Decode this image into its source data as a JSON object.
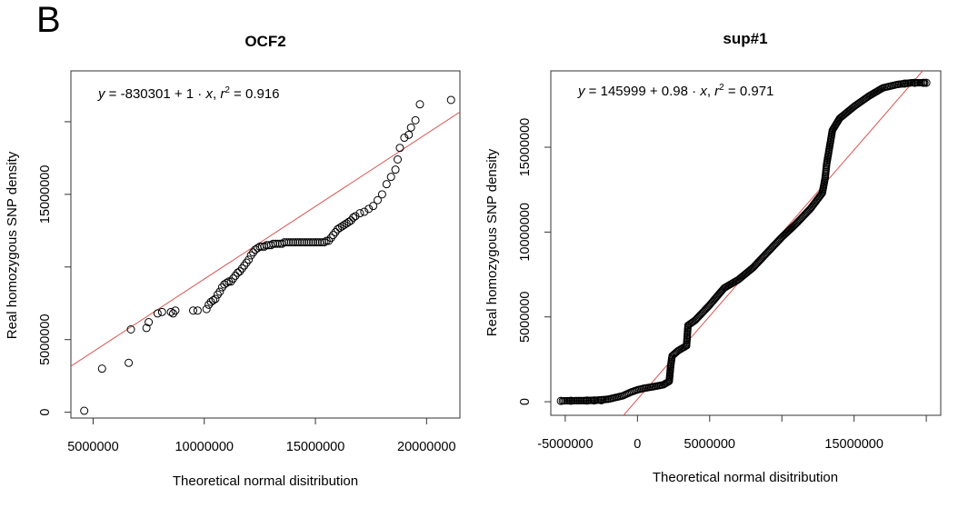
{
  "figure": {
    "panel_letter": "B"
  },
  "chart_data": [
    {
      "type": "scatter",
      "title": "OCF2",
      "xlabel": "Theoretical normal disitribution",
      "ylabel": "Real homozygous SNP density",
      "equation": {
        "intercept": "-830301",
        "slope": "1",
        "r2": "0.916"
      },
      "xlim": [
        4000000,
        21500000
      ],
      "ylim": [
        -400000,
        23500000
      ],
      "xticks": [
        5000000,
        10000000,
        15000000,
        20000000
      ],
      "xtick_labels": [
        "5000000",
        "10000000",
        "15000000",
        "20000000"
      ],
      "yticks": [
        0,
        5000000,
        10000000,
        15000000,
        20000000
      ],
      "ytick_labels": [
        "0",
        "5000000",
        "",
        "15000000",
        ""
      ],
      "fit_line": {
        "intercept": -830301,
        "slope": 1.0
      },
      "points": [
        [
          4600000,
          100000
        ],
        [
          5400000,
          3000000
        ],
        [
          6600000,
          3400000
        ],
        [
          6700000,
          5700000
        ],
        [
          7400000,
          5800000
        ],
        [
          7500000,
          6200000
        ],
        [
          7900000,
          6800000
        ],
        [
          8100000,
          6900000
        ],
        [
          8500000,
          6900000
        ],
        [
          8600000,
          6800000
        ],
        [
          8700000,
          7000000
        ],
        [
          9500000,
          7000000
        ],
        [
          9700000,
          7000000
        ],
        [
          10100000,
          7100000
        ],
        [
          10200000,
          7400000
        ],
        [
          10300000,
          7600000
        ],
        [
          10400000,
          7700000
        ],
        [
          10500000,
          7800000
        ],
        [
          10600000,
          8100000
        ],
        [
          10700000,
          8300000
        ],
        [
          10800000,
          8600000
        ],
        [
          10900000,
          8800000
        ],
        [
          11000000,
          8900000
        ],
        [
          11100000,
          9000000
        ],
        [
          11200000,
          9000000
        ],
        [
          11300000,
          9200000
        ],
        [
          11400000,
          9400000
        ],
        [
          11500000,
          9600000
        ],
        [
          11600000,
          9700000
        ],
        [
          11700000,
          9900000
        ],
        [
          11800000,
          10100000
        ],
        [
          11900000,
          10300000
        ],
        [
          12000000,
          10500000
        ],
        [
          12100000,
          10800000
        ],
        [
          12200000,
          11000000
        ],
        [
          12300000,
          11200000
        ],
        [
          12400000,
          11300000
        ],
        [
          12500000,
          11400000
        ],
        [
          12600000,
          11400000
        ],
        [
          12700000,
          11400000
        ],
        [
          12800000,
          11500000
        ],
        [
          12900000,
          11500000
        ],
        [
          13000000,
          11500000
        ],
        [
          13100000,
          11600000
        ],
        [
          13200000,
          11600000
        ],
        [
          13300000,
          11600000
        ],
        [
          13400000,
          11600000
        ],
        [
          13500000,
          11600000
        ],
        [
          13600000,
          11700000
        ],
        [
          13700000,
          11700000
        ],
        [
          13800000,
          11700000
        ],
        [
          13900000,
          11700000
        ],
        [
          14000000,
          11700000
        ],
        [
          14100000,
          11700000
        ],
        [
          14200000,
          11700000
        ],
        [
          14300000,
          11700000
        ],
        [
          14400000,
          11700000
        ],
        [
          14500000,
          11700000
        ],
        [
          14600000,
          11700000
        ],
        [
          14700000,
          11700000
        ],
        [
          14800000,
          11700000
        ],
        [
          14900000,
          11700000
        ],
        [
          15000000,
          11700000
        ],
        [
          15100000,
          11700000
        ],
        [
          15200000,
          11700000
        ],
        [
          15300000,
          11700000
        ],
        [
          15400000,
          11700000
        ],
        [
          15500000,
          11800000
        ],
        [
          15600000,
          11800000
        ],
        [
          15700000,
          12000000
        ],
        [
          15800000,
          12200000
        ],
        [
          15900000,
          12400000
        ],
        [
          16000000,
          12600000
        ],
        [
          16100000,
          12700000
        ],
        [
          16200000,
          12800000
        ],
        [
          16300000,
          12900000
        ],
        [
          16400000,
          13000000
        ],
        [
          16500000,
          13100000
        ],
        [
          16600000,
          13200000
        ],
        [
          16700000,
          13400000
        ],
        [
          16800000,
          13500000
        ],
        [
          17000000,
          13700000
        ],
        [
          17200000,
          13800000
        ],
        [
          17400000,
          14000000
        ],
        [
          17600000,
          14200000
        ],
        [
          17800000,
          14600000
        ],
        [
          18000000,
          15000000
        ],
        [
          18200000,
          15700000
        ],
        [
          18400000,
          16200000
        ],
        [
          18600000,
          16700000
        ],
        [
          18700000,
          17400000
        ],
        [
          18800000,
          18200000
        ],
        [
          19000000,
          18900000
        ],
        [
          19200000,
          19100000
        ],
        [
          19300000,
          19600000
        ],
        [
          19500000,
          20100000
        ],
        [
          19700000,
          21200000
        ],
        [
          21100000,
          21500000
        ]
      ]
    },
    {
      "type": "scatter",
      "title": "sup#1",
      "xlabel": "Theoretical normal disitribution",
      "ylabel": "Real homozygous SNP density",
      "equation": {
        "intercept": "145999",
        "slope": "0.98",
        "r2": "0.971"
      },
      "xlim": [
        -6000000,
        21000000
      ],
      "ylim": [
        -800000,
        19500000
      ],
      "xticks": [
        -5000000,
        0,
        5000000,
        10000000,
        15000000,
        20000000
      ],
      "xtick_labels": [
        "-5000000",
        "0",
        "5000000",
        "",
        "15000000",
        ""
      ],
      "yticks": [
        0,
        5000000,
        10000000,
        15000000
      ],
      "ytick_labels": [
        "0",
        "5000000",
        "10000000",
        "15000000"
      ],
      "fit_line": {
        "intercept": 145999,
        "slope": 0.98
      },
      "curve_points": [
        [
          -5200000,
          50000
        ],
        [
          -4500000,
          60000
        ],
        [
          -3500000,
          70000
        ],
        [
          -2800000,
          90000
        ],
        [
          -2000000,
          150000
        ],
        [
          -1500000,
          250000
        ],
        [
          -1000000,
          350000
        ],
        [
          -500000,
          550000
        ],
        [
          0,
          700000
        ],
        [
          500000,
          800000
        ],
        [
          1200000,
          900000
        ],
        [
          1800000,
          1000000
        ],
        [
          2200000,
          1200000
        ],
        [
          2300000,
          2100000
        ],
        [
          2400000,
          2700000
        ],
        [
          2800000,
          3000000
        ],
        [
          3400000,
          3300000
        ],
        [
          3500000,
          4500000
        ],
        [
          4000000,
          4800000
        ],
        [
          5000000,
          5700000
        ],
        [
          6000000,
          6700000
        ],
        [
          7000000,
          7200000
        ],
        [
          8000000,
          7900000
        ],
        [
          9000000,
          8800000
        ],
        [
          10000000,
          9700000
        ],
        [
          11000000,
          10500000
        ],
        [
          12000000,
          11400000
        ],
        [
          12800000,
          12300000
        ],
        [
          13000000,
          13200000
        ],
        [
          13100000,
          14000000
        ],
        [
          13300000,
          15000000
        ],
        [
          13500000,
          16000000
        ],
        [
          14000000,
          16700000
        ],
        [
          15000000,
          17400000
        ],
        [
          16000000,
          18000000
        ],
        [
          17000000,
          18500000
        ],
        [
          18000000,
          18700000
        ],
        [
          19000000,
          18800000
        ],
        [
          20000000,
          18800000
        ]
      ],
      "open_points": [
        [
          -5300000,
          50000
        ],
        [
          -4600000,
          60000
        ],
        [
          -3500000,
          70000
        ],
        [
          -3000000,
          75000
        ],
        [
          -2500000,
          90000
        ],
        [
          18500000,
          18750000
        ],
        [
          19200000,
          18800000
        ],
        [
          19800000,
          18800000
        ],
        [
          20000000,
          18800000
        ]
      ]
    }
  ]
}
